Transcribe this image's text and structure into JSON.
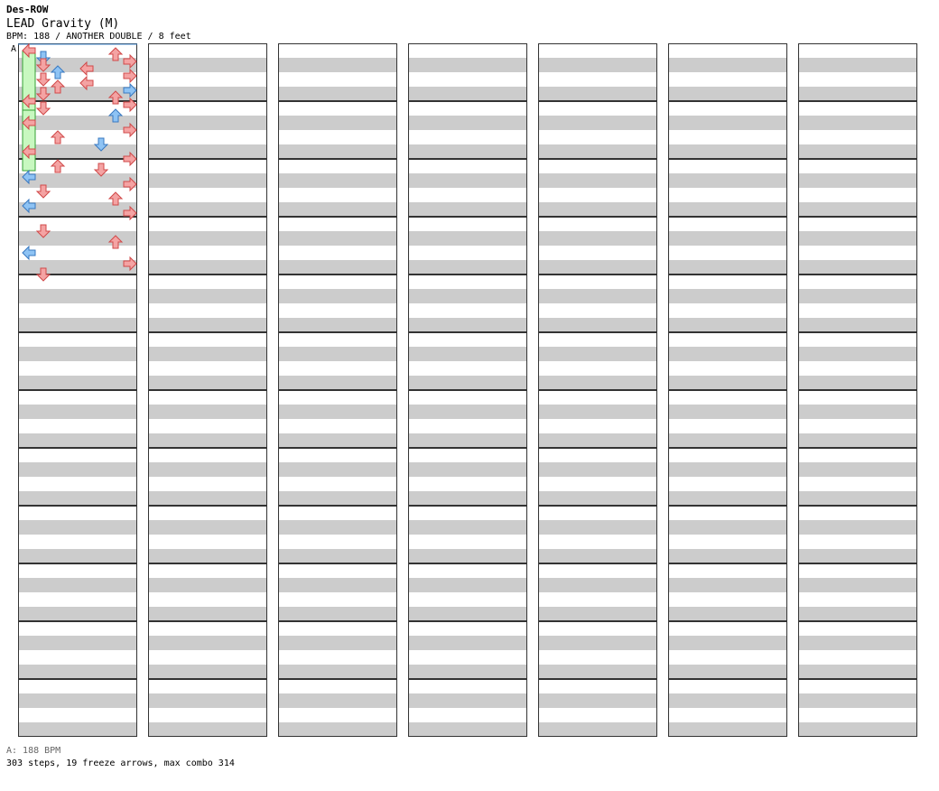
{
  "header": {
    "artist": "Des-ROW",
    "title": "LEAD Gravity (M)",
    "subtitle": "BPM: 188 / ANOTHER DOUBLE / 8 feet"
  },
  "marker": {
    "label": "A"
  },
  "footer": {
    "bpm_line": "A: 188 BPM",
    "stats_line": "303 steps, 19 freeze arrows, max combo 314"
  },
  "colors": {
    "red": "#f4a3a3",
    "red_stroke": "#d04848",
    "blue": "#8ec3f4",
    "blue_stroke": "#3878c0",
    "pink": "#f6b6f2",
    "pink_stroke": "#c04cb8",
    "freeze": "#c8f8c0",
    "freeze_stroke": "#34a034",
    "row_gray": "#cccccc"
  },
  "chart_data": {
    "type": "table",
    "lanes": 8,
    "columns": 7,
    "measures_per_column": 12,
    "notes": [
      [
        0,
        0,
        0,
        "L",
        "r"
      ],
      [
        0,
        0,
        4,
        "U",
        "r"
      ],
      [
        0,
        0,
        8,
        "D",
        "b"
      ],
      [
        0,
        0,
        12,
        "R",
        "r"
      ],
      [
        0,
        0,
        16,
        "D",
        "r"
      ],
      [
        0,
        0,
        20,
        "L",
        "r"
      ],
      [
        0,
        0,
        24,
        "U",
        "b"
      ],
      [
        0,
        0,
        28,
        "R",
        "r"
      ],
      [
        0,
        0,
        32,
        "D",
        "r"
      ],
      [
        0,
        0,
        36,
        "L",
        "r"
      ],
      [
        0,
        0,
        40,
        "U",
        "r"
      ],
      [
        0,
        0,
        44,
        "R",
        "b"
      ],
      [
        0,
        0,
        48,
        "D",
        "r"
      ],
      [
        0,
        0,
        52,
        "U",
        "r"
      ],
      [
        0,
        0,
        56,
        "L",
        "r"
      ],
      [
        0,
        0,
        60,
        "R",
        "r"
      ],
      [
        0,
        1,
        0,
        "D",
        "r"
      ],
      [
        0,
        1,
        8,
        "U",
        "b"
      ],
      [
        0,
        1,
        16,
        "L",
        "r"
      ],
      [
        0,
        1,
        24,
        "R",
        "r"
      ],
      [
        0,
        1,
        32,
        "U",
        "r"
      ],
      [
        0,
        1,
        40,
        "D",
        "b"
      ],
      [
        0,
        1,
        48,
        "L",
        "r"
      ],
      [
        0,
        1,
        56,
        "R",
        "r"
      ],
      [
        0,
        2,
        0,
        "U",
        "r"
      ],
      [
        0,
        2,
        4,
        "D",
        "r"
      ],
      [
        0,
        2,
        12,
        "L",
        "b"
      ],
      [
        0,
        2,
        20,
        "R",
        "r"
      ],
      [
        0,
        2,
        28,
        "D",
        "r"
      ],
      [
        0,
        2,
        36,
        "U",
        "r"
      ],
      [
        0,
        2,
        44,
        "L",
        "b"
      ],
      [
        0,
        2,
        52,
        "R",
        "r"
      ],
      [
        0,
        3,
        8,
        "D",
        "r"
      ],
      [
        0,
        3,
        20,
        "U",
        "r"
      ],
      [
        0,
        3,
        32,
        "L",
        "b"
      ],
      [
        0,
        3,
        44,
        "R",
        "r"
      ],
      [
        0,
        3,
        56,
        "D",
        "r"
      ]
    ],
    "freezes": [
      [
        0,
        0,
        0,
        2,
        4,
        0,
        "r"
      ],
      [
        0,
        1,
        2,
        2,
        5,
        0,
        "r"
      ]
    ]
  }
}
